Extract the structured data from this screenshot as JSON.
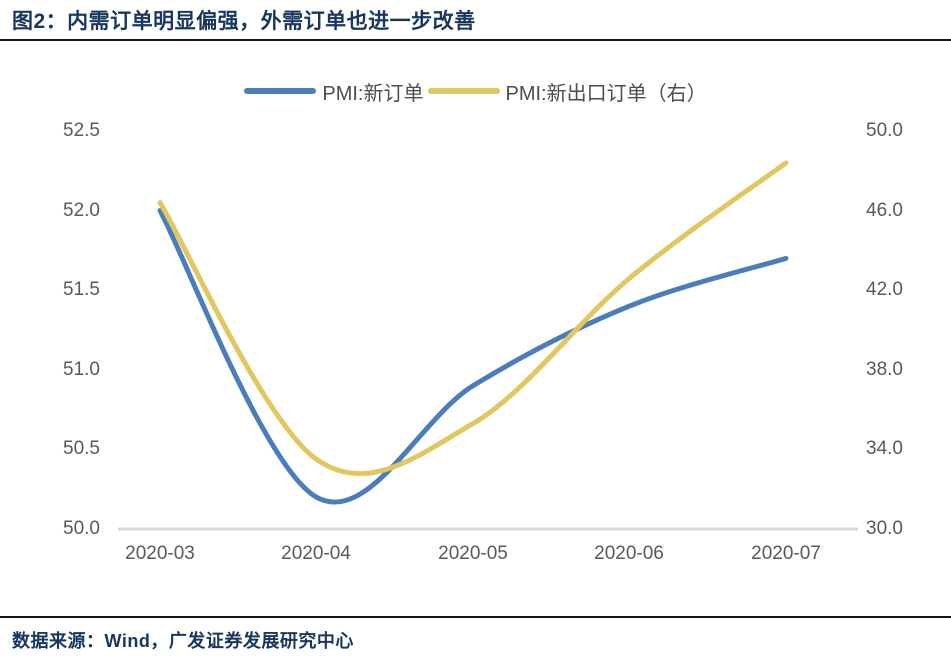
{
  "header": {
    "title": "图2：内需订单明显偏强，外需订单也进一步改善"
  },
  "chart_data": {
    "type": "line",
    "smooth": true,
    "grid": false,
    "legend_position": "top",
    "x": [
      "2020-03",
      "2020-04",
      "2020-05",
      "2020-06",
      "2020-07"
    ],
    "series": [
      {
        "name": "PMI:新订单",
        "axis": "left",
        "color": "#4a7ebb",
        "values": [
          52.0,
          50.2,
          50.9,
          51.4,
          51.7
        ]
      },
      {
        "name": "PMI:新出口订单（右）",
        "axis": "right",
        "color": "#e2c65f",
        "values": [
          46.4,
          33.5,
          35.3,
          42.6,
          48.4
        ]
      }
    ],
    "left_axis": {
      "ylim": [
        50.0,
        52.5
      ],
      "ticks": [
        "52.5",
        "52.0",
        "51.5",
        "51.0",
        "50.5",
        "50.0"
      ]
    },
    "right_axis": {
      "ylim": [
        30.0,
        50.0
      ],
      "ticks": [
        "50.0",
        "46.0",
        "42.0",
        "38.0",
        "34.0",
        "30.0"
      ]
    },
    "axis_line_color": "#d9d9d9",
    "tick_color": "#595959"
  },
  "footer": {
    "source": "数据来源：Wind，广发证券发展研究中心"
  }
}
